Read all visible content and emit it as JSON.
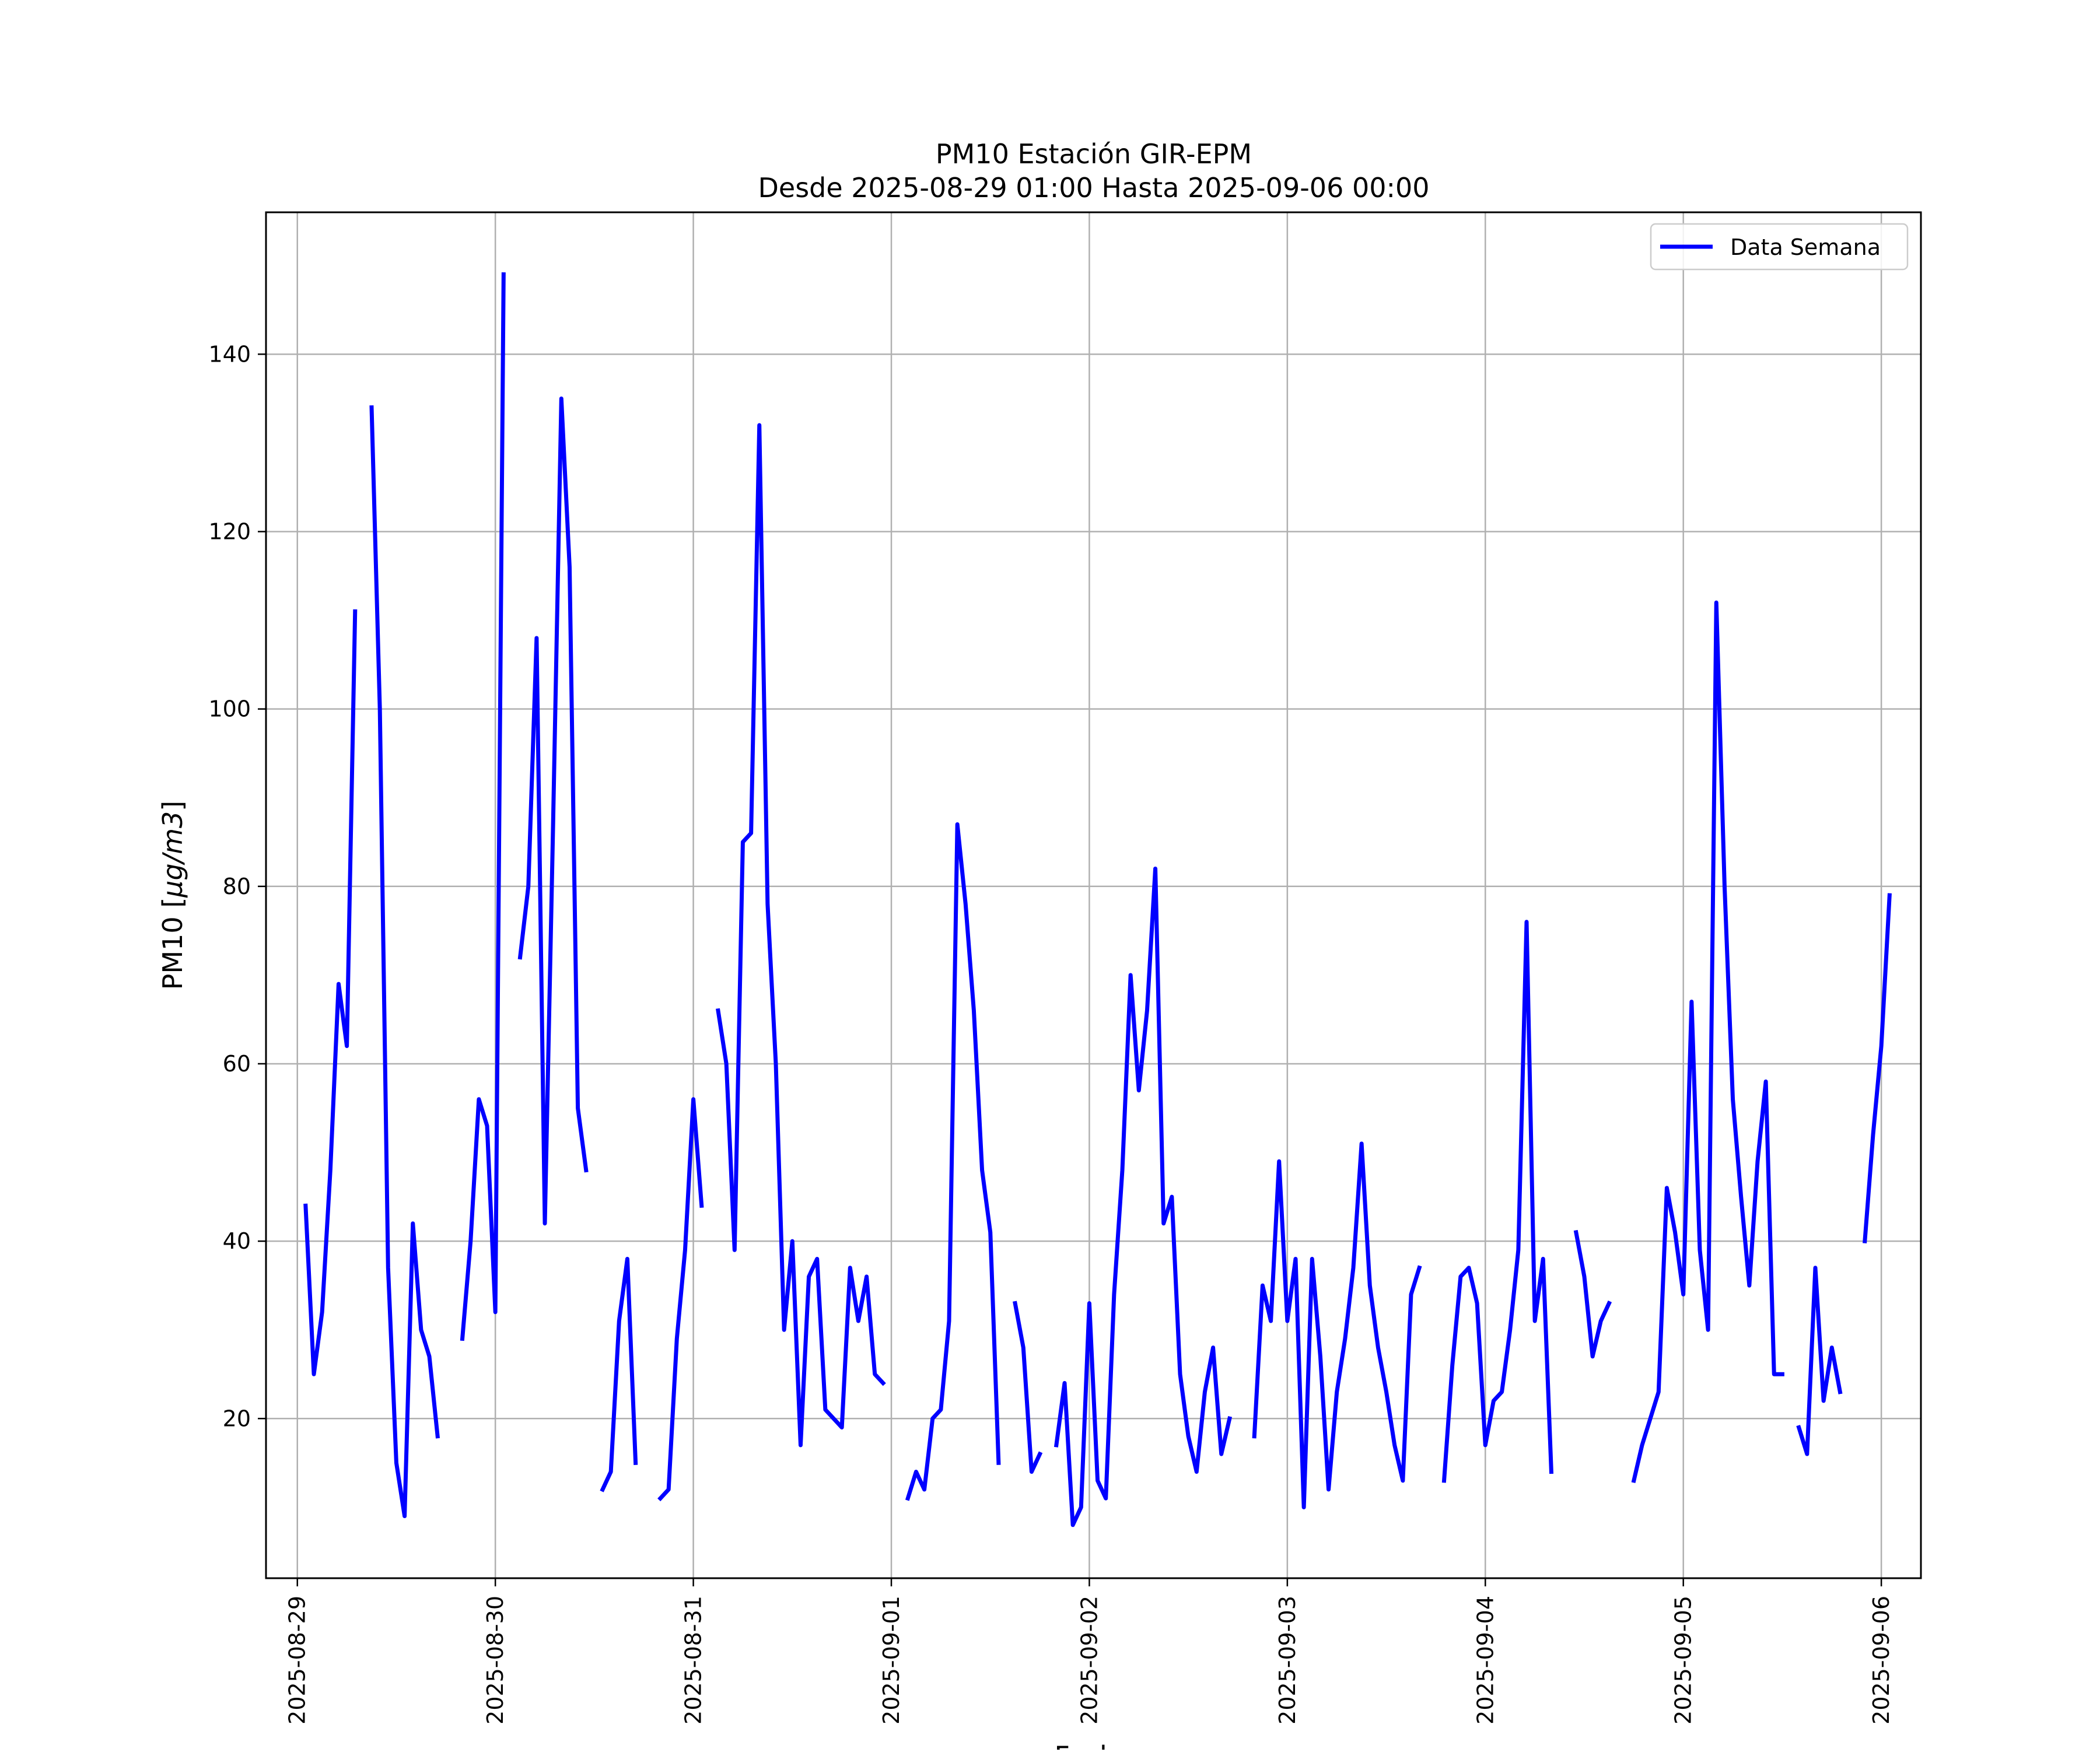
{
  "chart_data": {
    "type": "line",
    "title": "PM10 Estación GIR-EPM",
    "subtitle": "Desde 2025-08-29 01:00 Hasta 2025-09-06 00:00",
    "xlabel": "Fecha",
    "ylabel_main": "PM10 [",
    "ylabel_unit": "μg/m3",
    "ylabel_close": "]",
    "x_start": "2025-08-29 01:00",
    "x_end": "2025-09-06 00:00",
    "xlim": [
      "2025-08-28 20:12",
      "2025-09-06 04:48"
    ],
    "ylim": [
      2,
      156
    ],
    "x_ticks": [
      "2025-08-29",
      "2025-08-30",
      "2025-08-31",
      "2025-09-01",
      "2025-09-02",
      "2025-09-03",
      "2025-09-04",
      "2025-09-05",
      "2025-09-06"
    ],
    "y_ticks": [
      20,
      40,
      60,
      80,
      100,
      120,
      140
    ],
    "grid": true,
    "legend": "upper-right",
    "series": [
      {
        "name": "Data Semana",
        "color": "#0000ff",
        "values": [
          44,
          25,
          32,
          48,
          69,
          62,
          111,
          null,
          134,
          100,
          37,
          15,
          9,
          42,
          30,
          27,
          18,
          null,
          null,
          29,
          40,
          56,
          53,
          32,
          149,
          null,
          72,
          80,
          108,
          42,
          87,
          135,
          116,
          55,
          48,
          null,
          12,
          14,
          31,
          38,
          15,
          null,
          null,
          11,
          12,
          29,
          39,
          56,
          44,
          null,
          66,
          60,
          39,
          85,
          86,
          132,
          78,
          60,
          30,
          40,
          17,
          36,
          38,
          21,
          20,
          19,
          37,
          31,
          36,
          25,
          24,
          null,
          null,
          11,
          14,
          12,
          20,
          21,
          31,
          87,
          78,
          66,
          48,
          41,
          15,
          null,
          33,
          28,
          14,
          16,
          null,
          17,
          24,
          8,
          10,
          33,
          13,
          11,
          34,
          48,
          70,
          57,
          66,
          82,
          42,
          45,
          25,
          18,
          14,
          23,
          28,
          16,
          20,
          null,
          null,
          18,
          35,
          31,
          49,
          31,
          38,
          10,
          38,
          27,
          12,
          23,
          29,
          37,
          51,
          35,
          28,
          23,
          17,
          13,
          34,
          37,
          null,
          null,
          13,
          26,
          36,
          37,
          33,
          17,
          22,
          23,
          30,
          39,
          76,
          31,
          38,
          14,
          null,
          null,
          41,
          36,
          27,
          31,
          33,
          null,
          null,
          13,
          17,
          20,
          23,
          46,
          41,
          34,
          67,
          39,
          30,
          112,
          80,
          56,
          45,
          35,
          49,
          58,
          25,
          25,
          null,
          19,
          16,
          37,
          22,
          28,
          23,
          null,
          null,
          40,
          52,
          62,
          79
        ]
      }
    ]
  }
}
